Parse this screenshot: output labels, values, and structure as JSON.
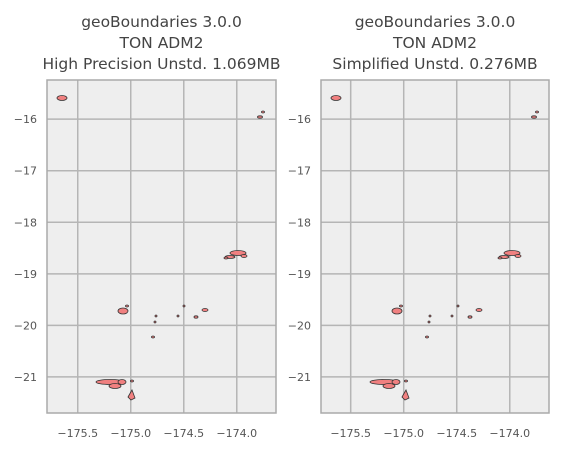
{
  "chart_data": [
    {
      "type": "map",
      "title": [
        "geoBoundaries 3.0.0",
        "TON ADM2",
        "High Precision Unstd. 1.069MB"
      ],
      "xlim": [
        -175.79,
        -173.63
      ],
      "ylim": [
        -21.7,
        -15.24
      ],
      "xticks": [
        {
          "value": -175.5,
          "label": "−175.5"
        },
        {
          "value": -175.0,
          "label": "−175.0"
        },
        {
          "value": -174.5,
          "label": "−174.5"
        },
        {
          "value": -174.0,
          "label": "−174.0"
        }
      ],
      "yticks": [
        {
          "value": -16,
          "label": "−16"
        },
        {
          "value": -17,
          "label": "−17"
        },
        {
          "value": -18,
          "label": "−18"
        },
        {
          "value": -19,
          "label": "−19"
        },
        {
          "value": -20,
          "label": "−20"
        },
        {
          "value": -21,
          "label": "−21"
        }
      ],
      "grid": true
    },
    {
      "type": "map",
      "title": [
        "geoBoundaries 3.0.0",
        "TON ADM2",
        "Simplified Unstd. 0.276MB"
      ],
      "xlim": [
        -175.78,
        -173.63
      ],
      "ylim": [
        -21.7,
        -15.24
      ],
      "xticks": [
        {
          "value": -175.5,
          "label": "−175.5"
        },
        {
          "value": -175.0,
          "label": "−175.0"
        },
        {
          "value": -174.5,
          "label": "−174.5"
        },
        {
          "value": -174.0,
          "label": "−174.0"
        }
      ],
      "yticks": [
        {
          "value": -16,
          "label": "−16"
        },
        {
          "value": -17,
          "label": "−17"
        },
        {
          "value": -18,
          "label": "−18"
        },
        {
          "value": -19,
          "label": "−19"
        },
        {
          "value": -20,
          "label": "−20"
        },
        {
          "value": -21,
          "label": "−21"
        }
      ],
      "grid": true
    }
  ]
}
